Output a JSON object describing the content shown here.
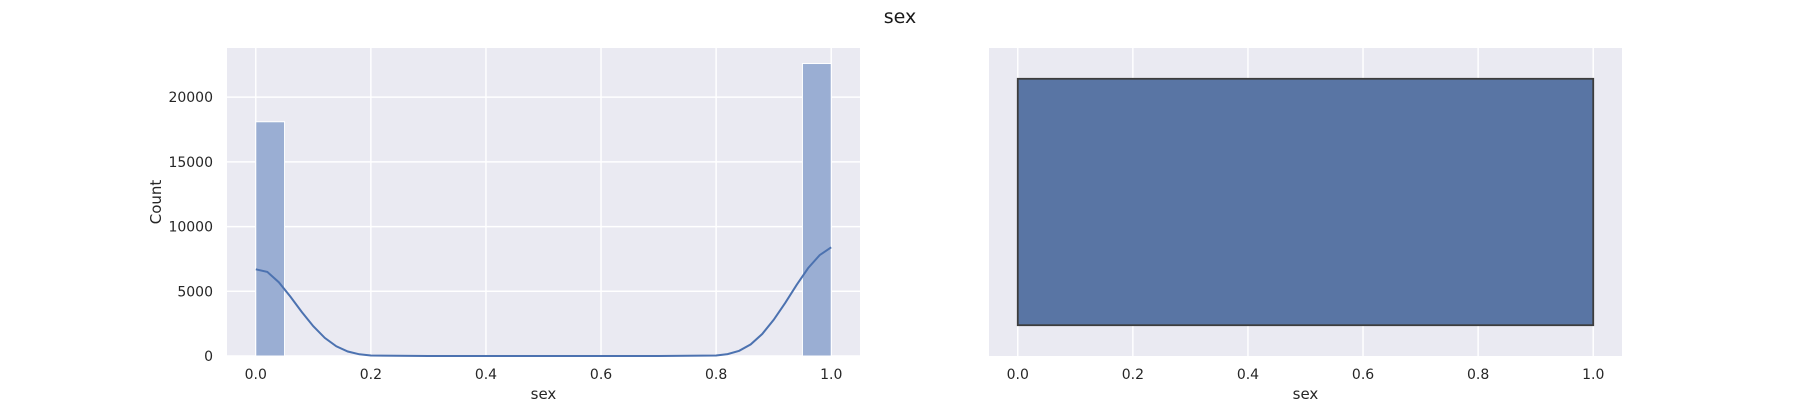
{
  "figure": {
    "title": "sex"
  },
  "chart_data": [
    {
      "type": "bar",
      "subtype": "histogram-with-kde",
      "xlabel": "sex",
      "ylabel": "Count",
      "xlim": [
        -0.05,
        1.05
      ],
      "ylim": [
        0,
        23800
      ],
      "xticks": [
        0.0,
        0.2,
        0.4,
        0.6,
        0.8,
        1.0
      ],
      "xtick_labels": [
        "0.0",
        "0.2",
        "0.4",
        "0.6",
        "0.8",
        "1.0"
      ],
      "yticks": [
        0,
        5000,
        10000,
        15000,
        20000
      ],
      "ytick_labels": [
        "0",
        "5000",
        "10000",
        "15000",
        "20000"
      ],
      "grid": true,
      "bar_color": "#9aaed3",
      "line_color": "#4c72b0",
      "background": "#eaeaf2",
      "bins": [
        {
          "x0": 0.0,
          "x1": 0.05,
          "count": 18100
        },
        {
          "x0": 0.05,
          "x1": 0.1,
          "count": 0
        },
        {
          "x0": 0.1,
          "x1": 0.15,
          "count": 0
        },
        {
          "x0": 0.15,
          "x1": 0.2,
          "count": 0
        },
        {
          "x0": 0.2,
          "x1": 0.25,
          "count": 0
        },
        {
          "x0": 0.25,
          "x1": 0.3,
          "count": 0
        },
        {
          "x0": 0.3,
          "x1": 0.35,
          "count": 0
        },
        {
          "x0": 0.35,
          "x1": 0.4,
          "count": 0
        },
        {
          "x0": 0.4,
          "x1": 0.45,
          "count": 0
        },
        {
          "x0": 0.45,
          "x1": 0.5,
          "count": 0
        },
        {
          "x0": 0.5,
          "x1": 0.55,
          "count": 0
        },
        {
          "x0": 0.55,
          "x1": 0.6,
          "count": 0
        },
        {
          "x0": 0.6,
          "x1": 0.65,
          "count": 0
        },
        {
          "x0": 0.65,
          "x1": 0.7,
          "count": 0
        },
        {
          "x0": 0.7,
          "x1": 0.75,
          "count": 0
        },
        {
          "x0": 0.75,
          "x1": 0.8,
          "count": 0
        },
        {
          "x0": 0.8,
          "x1": 0.85,
          "count": 0
        },
        {
          "x0": 0.85,
          "x1": 0.9,
          "count": 0
        },
        {
          "x0": 0.9,
          "x1": 0.95,
          "count": 0
        },
        {
          "x0": 0.95,
          "x1": 1.0,
          "count": 22600
        }
      ],
      "kde": {
        "x": [
          0.0,
          0.02,
          0.04,
          0.06,
          0.08,
          0.1,
          0.12,
          0.14,
          0.16,
          0.18,
          0.2,
          0.3,
          0.5,
          0.7,
          0.8,
          0.82,
          0.84,
          0.86,
          0.88,
          0.9,
          0.92,
          0.94,
          0.96,
          0.98,
          1.0
        ],
        "y": [
          6700,
          6500,
          5700,
          4600,
          3400,
          2300,
          1400,
          750,
          350,
          130,
          40,
          0,
          0,
          0,
          40,
          150,
          400,
          900,
          1700,
          2800,
          4100,
          5500,
          6800,
          7800,
          8400
        ]
      }
    },
    {
      "type": "box",
      "orientation": "horizontal",
      "xlabel": "sex",
      "xlim": [
        -0.05,
        1.05
      ],
      "xticks": [
        0.0,
        0.2,
        0.4,
        0.6,
        0.8,
        1.0
      ],
      "xtick_labels": [
        "0.0",
        "0.2",
        "0.4",
        "0.6",
        "0.8",
        "1.0"
      ],
      "grid": true,
      "box_color": "#5975a4",
      "edge_color": "#3d3d3d",
      "background": "#eaeaf2",
      "stats": {
        "min": 0.0,
        "q1": 0.0,
        "median": 1.0,
        "q3": 1.0,
        "max": 1.0
      }
    }
  ]
}
